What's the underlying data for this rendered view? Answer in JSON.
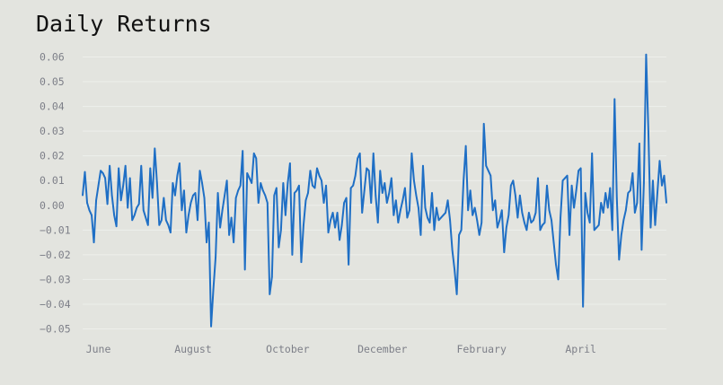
{
  "chart_data": {
    "type": "line",
    "title": "Daily Returns",
    "xlabel": "",
    "ylabel": "",
    "ylim": [
      -0.052,
      0.062
    ],
    "grid": true,
    "legend": "none",
    "line_color": "#1f6fc5",
    "y_ticks": [
      {
        "value": 0.06,
        "label": "0.06"
      },
      {
        "value": 0.05,
        "label": "0.05"
      },
      {
        "value": 0.04,
        "label": "0.04"
      },
      {
        "value": 0.03,
        "label": "0.03"
      },
      {
        "value": 0.02,
        "label": "0.02"
      },
      {
        "value": 0.01,
        "label": "0.01"
      },
      {
        "value": 0.0,
        "label": "0.00"
      },
      {
        "value": -0.01,
        "label": "−0.01"
      },
      {
        "value": -0.02,
        "label": "−0.02"
      },
      {
        "value": -0.03,
        "label": "−0.03"
      },
      {
        "value": -0.04,
        "label": "−0.04"
      },
      {
        "value": -0.05,
        "label": "−0.05"
      }
    ],
    "x_ticks": [
      {
        "index": 7,
        "label": "June"
      },
      {
        "index": 49,
        "label": "August"
      },
      {
        "index": 91,
        "label": "October"
      },
      {
        "index": 133,
        "label": "December"
      },
      {
        "index": 177,
        "label": "February"
      },
      {
        "index": 221,
        "label": "April"
      }
    ],
    "series": [
      {
        "values": [
          0.004,
          0.0135,
          0.001,
          -0.002,
          -0.004,
          -0.015,
          0.002,
          0.008,
          0.014,
          0.013,
          0.011,
          0.0005,
          0.016,
          0.004,
          -0.004,
          -0.0085,
          0.015,
          0.002,
          0.008,
          0.016,
          -0.001,
          0.011,
          -0.006,
          -0.004,
          -0.001,
          0.0005,
          0.016,
          -0.002,
          -0.005,
          -0.008,
          0.015,
          0.003,
          0.023,
          0.009,
          -0.008,
          -0.006,
          0.003,
          -0.006,
          -0.008,
          -0.011,
          0.009,
          0.004,
          0.012,
          0.017,
          -0.002,
          0.006,
          -0.011,
          -0.004,
          0.001,
          0.004,
          0.005,
          -0.006,
          0.014,
          0.009,
          0.003,
          -0.015,
          -0.007,
          -0.049,
          -0.034,
          -0.021,
          0.005,
          -0.009,
          -0.002,
          0.004,
          0.01,
          -0.012,
          -0.005,
          -0.015,
          0.003,
          0.006,
          0.008,
          0.022,
          -0.026,
          0.013,
          0.011,
          0.009,
          0.021,
          0.019,
          0.001,
          0.009,
          0.006,
          0.004,
          0.001,
          -0.036,
          -0.029,
          0.004,
          0.007,
          -0.017,
          -0.01,
          0.009,
          -0.004,
          0.009,
          0.017,
          -0.02,
          0.005,
          0.006,
          0.008,
          -0.023,
          -0.008,
          0.002,
          0.005,
          0.014,
          0.008,
          0.007,
          0.015,
          0.012,
          0.01,
          0.001,
          0.008,
          -0.011,
          -0.006,
          -0.003,
          -0.009,
          -0.003,
          -0.014,
          -0.008,
          0.001,
          0.003,
          -0.024,
          0.007,
          0.008,
          0.012,
          0.019,
          0.021,
          -0.003,
          0.006,
          0.015,
          0.014,
          0.001,
          0.021,
          0.004,
          -0.007,
          0.014,
          0.005,
          0.009,
          0.001,
          0.005,
          0.011,
          -0.004,
          0.002,
          -0.007,
          -0.002,
          0.002,
          0.007,
          -0.005,
          -0.002,
          0.021,
          0.01,
          0.004,
          -0.001,
          -0.012,
          0.016,
          -0.001,
          -0.005,
          -0.007,
          0.005,
          -0.01,
          -0.001,
          -0.006,
          -0.005,
          -0.004,
          -0.003,
          0.002,
          -0.006,
          -0.018,
          -0.026,
          -0.036,
          -0.012,
          -0.01,
          0.01,
          0.024,
          -0.002,
          0.006,
          -0.004,
          -0.001,
          -0.006,
          -0.012,
          -0.007,
          0.033,
          0.016,
          0.014,
          0.012,
          -0.002,
          0.002,
          -0.009,
          -0.006,
          -0.002,
          -0.019,
          -0.009,
          -0.004,
          0.008,
          0.01,
          0.004,
          -0.005,
          0.004,
          -0.003,
          -0.007,
          -0.01,
          -0.003,
          -0.007,
          -0.006,
          -0.003,
          0.011,
          -0.01,
          -0.008,
          -0.007,
          0.008,
          -0.002,
          -0.006,
          -0.015,
          -0.024,
          -0.03,
          -0.005,
          0.01,
          0.011,
          0.012,
          -0.012,
          0.008,
          -0.001,
          0.006,
          0.014,
          0.015,
          -0.041,
          0.005,
          -0.003,
          -0.007,
          0.021,
          -0.01,
          -0.009,
          -0.008,
          0.001,
          -0.003,
          0.005,
          -0.001,
          0.007,
          -0.01,
          0.043,
          0.003,
          -0.022,
          -0.012,
          -0.006,
          -0.002,
          0.005,
          0.006,
          0.013,
          -0.003,
          0.001,
          0.025,
          -0.018,
          0.009,
          0.061,
          0.03,
          -0.009,
          0.01,
          -0.008,
          0.005,
          0.018,
          0.008,
          0.012,
          0.001
        ]
      }
    ]
  }
}
